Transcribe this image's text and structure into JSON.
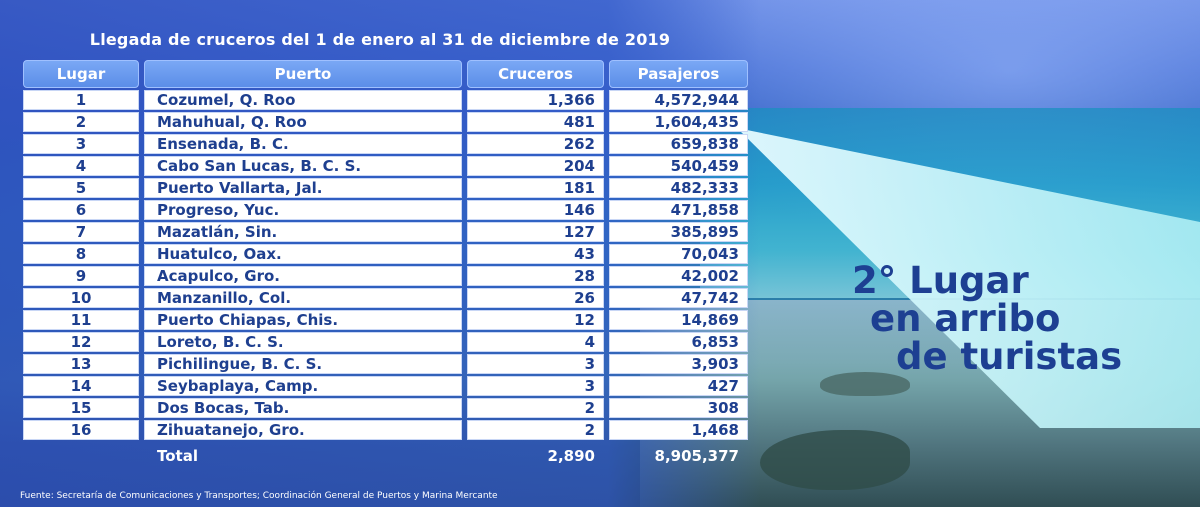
{
  "title": "Llegada de cruceros del 1 de enero al 31 de diciembre de 2019",
  "headers": [
    "Lugar",
    "Puerto",
    "Cruceros",
    "Pasajeros"
  ],
  "rows": [
    {
      "lugar": "1",
      "puerto": "Cozumel, Q. Roo",
      "cruceros": "1,366",
      "pasajeros": "4,572,944"
    },
    {
      "lugar": "2",
      "puerto": "Mahuhual, Q. Roo",
      "cruceros": "481",
      "pasajeros": "1,604,435"
    },
    {
      "lugar": "3",
      "puerto": "Ensenada, B. C.",
      "cruceros": "262",
      "pasajeros": "659,838"
    },
    {
      "lugar": "4",
      "puerto": "Cabo San Lucas, B. C. S.",
      "cruceros": "204",
      "pasajeros": "540,459"
    },
    {
      "lugar": "5",
      "puerto": "Puerto Vallarta, Jal.",
      "cruceros": "181",
      "pasajeros": "482,333"
    },
    {
      "lugar": "6",
      "puerto": "Progreso, Yuc.",
      "cruceros": "146",
      "pasajeros": "471,858"
    },
    {
      "lugar": "7",
      "puerto": "Mazatlán, Sin.",
      "cruceros": "127",
      "pasajeros": "385,895"
    },
    {
      "lugar": "8",
      "puerto": "Huatulco, Oax.",
      "cruceros": "43",
      "pasajeros": "70,043"
    },
    {
      "lugar": "9",
      "puerto": "Acapulco, Gro.",
      "cruceros": "28",
      "pasajeros": "42,002"
    },
    {
      "lugar": "10",
      "puerto": "Manzanillo, Col.",
      "cruceros": "26",
      "pasajeros": "47,742"
    },
    {
      "lugar": "11",
      "puerto": "Puerto Chiapas, Chis.",
      "cruceros": "12",
      "pasajeros": "14,869"
    },
    {
      "lugar": "12",
      "puerto": "Loreto, B. C. S.",
      "cruceros": "4",
      "pasajeros": "6,853"
    },
    {
      "lugar": "13",
      "puerto": "Pichilingue, B. C. S.",
      "cruceros": "3",
      "pasajeros": "3,903"
    },
    {
      "lugar": "14",
      "puerto": "Seybaplaya, Camp.",
      "cruceros": "3",
      "pasajeros": "427"
    },
    {
      "lugar": "15",
      "puerto": "Dos Bocas, Tab.",
      "cruceros": "2",
      "pasajeros": "308"
    },
    {
      "lugar": "16",
      "puerto": "Zihuatanejo, Gro.",
      "cruceros": "2",
      "pasajeros": "1,468"
    }
  ],
  "total": {
    "label": "Total",
    "cruceros": "2,890",
    "pasajeros": "8,905,377"
  },
  "callout": {
    "line1": "2° Lugar",
    "line2": "en arribo",
    "line3": "de turistas"
  },
  "source": "Fuente: Secretaría de Comunicaciones y Transportes; Coordinación General de Puertos y Marina Mercante",
  "colors": {
    "header_bg": "#5b8ee8",
    "cell_text": "#1e3f8f",
    "callout_text": "#1d3f92",
    "pointer": "#bff3f7"
  }
}
